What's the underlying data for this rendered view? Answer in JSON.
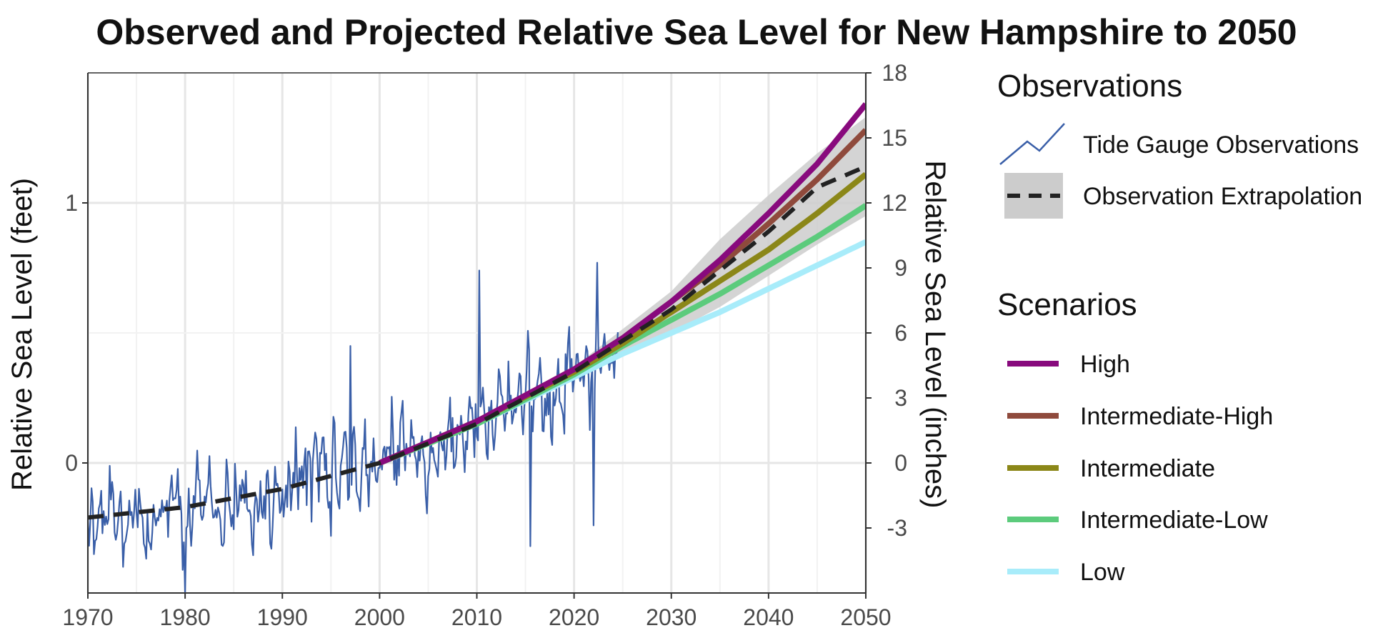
{
  "chart_data": {
    "type": "line",
    "title": "Observed and Projected Relative Sea Level for New Hampshire to 2050",
    "xlabel": "",
    "ylabel_left": "Relative Sea Level (feet)",
    "ylabel_right": "Relative Sea Level (inches)",
    "xlim": [
      1970,
      2050
    ],
    "ylim_feet": [
      -0.5,
      1.5
    ],
    "x_ticks": [
      1970,
      1980,
      1990,
      2000,
      2010,
      2020,
      2030,
      2040,
      2050
    ],
    "x_tick_labels": [
      "1970",
      "1980",
      "1990",
      "2000",
      "2010",
      "2020",
      "2030",
      "2040",
      "2050"
    ],
    "y_left_ticks": [
      0,
      1
    ],
    "y_left_tick_labels": [
      "0",
      "1"
    ],
    "y_right_ticks_inches": [
      -3,
      0,
      3,
      6,
      9,
      12,
      15,
      18
    ],
    "y_right_tick_labels": [
      "-3",
      "0",
      "3",
      "6",
      "9",
      "12",
      "15",
      "18"
    ],
    "grid": true,
    "legend_position": "right",
    "observations": {
      "heading": "Observations",
      "tide_gauge": {
        "name": "Tide Gauge Observations",
        "color": "#3a5fa8",
        "x_start": 1970,
        "x_end": 2024.5,
        "step_years": 0.125,
        "trend_feet": [
          [
            1970,
            -0.22
          ],
          [
            1980,
            -0.18
          ],
          [
            1990,
            -0.11
          ],
          [
            2000,
            0.0
          ],
          [
            2010,
            0.15
          ],
          [
            2020,
            0.33
          ],
          [
            2024.5,
            0.42
          ]
        ],
        "noise_amplitude_feet": 0.13,
        "annotated_peaks": [
          [
            1997,
            0.45
          ],
          [
            2010.3,
            0.74
          ],
          [
            2022.4,
            0.77
          ]
        ],
        "annotated_troughs": [
          [
            1980,
            -0.5
          ],
          [
            2015.5,
            -0.32
          ],
          [
            2022,
            -0.24
          ]
        ]
      },
      "extrapolation": {
        "name": "Observation Extrapolation",
        "color": "#222222",
        "band_color": "#cccccc",
        "x": [
          1970,
          1980,
          1990,
          2000,
          2010,
          2020,
          2030,
          2035,
          2040,
          2045,
          2050
        ],
        "y": [
          -0.21,
          -0.17,
          -0.1,
          0.0,
          0.15,
          0.35,
          0.59,
          0.74,
          0.89,
          1.06,
          1.14
        ],
        "band_lower": [
          null,
          null,
          null,
          null,
          null,
          0.33,
          0.5,
          0.6,
          0.72,
          0.84,
          0.95
        ],
        "band_upper": [
          null,
          null,
          null,
          null,
          null,
          0.37,
          0.66,
          0.86,
          1.03,
          1.19,
          1.33
        ]
      }
    },
    "scenarios": {
      "heading": "Scenarios",
      "x": [
        2000,
        2010,
        2020,
        2025,
        2030,
        2035,
        2040,
        2045,
        2050
      ],
      "series": [
        {
          "name": "High",
          "color": "#880a7d",
          "values": [
            0.0,
            0.16,
            0.36,
            0.48,
            0.62,
            0.78,
            0.96,
            1.15,
            1.38
          ]
        },
        {
          "name": "Intermediate-High",
          "color": "#8f4a3c",
          "values": [
            0.0,
            0.16,
            0.36,
            0.48,
            0.62,
            0.76,
            0.92,
            1.09,
            1.28
          ]
        },
        {
          "name": "Intermediate",
          "color": "#8b8718",
          "values": [
            0.0,
            0.16,
            0.35,
            0.46,
            0.58,
            0.7,
            0.82,
            0.96,
            1.11
          ]
        },
        {
          "name": "Intermediate-Low",
          "color": "#5ccb7c",
          "values": [
            0.0,
            0.15,
            0.34,
            0.45,
            0.55,
            0.65,
            0.76,
            0.87,
            0.99
          ]
        },
        {
          "name": "Low",
          "color": "#a8ecfa",
          "values": [
            0.0,
            0.15,
            0.33,
            0.42,
            0.5,
            0.58,
            0.67,
            0.76,
            0.85
          ]
        }
      ]
    }
  }
}
